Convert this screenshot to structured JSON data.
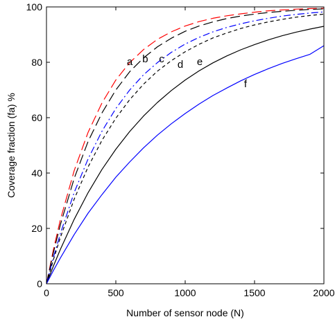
{
  "chart_data": {
    "type": "line",
    "title": "",
    "xlabel": "Number of sensor node (N)",
    "ylabel": "Coverage fraction (fa) %",
    "xlim": [
      0,
      2000
    ],
    "ylim": [
      0,
      100
    ],
    "xticks": [
      0,
      500,
      1000,
      1500,
      2000
    ],
    "yticks": [
      0,
      20,
      40,
      60,
      80,
      100
    ],
    "grid": false,
    "x": [
      0,
      50,
      100,
      200,
      300,
      400,
      500,
      600,
      700,
      800,
      900,
      1000,
      1100,
      1200,
      1300,
      1400,
      1500,
      1600,
      1700,
      1800,
      1900,
      2000
    ],
    "series": [
      {
        "name": "a",
        "color": "#ff0000",
        "dash": "long",
        "label_at": [
          600,
          79
        ],
        "values": [
          0,
          12.3,
          23.1,
          40.9,
          54.7,
          65.3,
          73.6,
          79.9,
          84.6,
          88.3,
          91.0,
          93.1,
          94.7,
          95.9,
          96.8,
          97.5,
          98.1,
          98.6,
          98.9,
          99.2,
          99.4,
          99.5
        ]
      },
      {
        "name": "b",
        "color": "#000000",
        "dash": "long",
        "label_at": [
          712,
          80
        ],
        "values": [
          0,
          11.3,
          21.3,
          38.1,
          51.4,
          61.7,
          70.0,
          76.6,
          81.6,
          85.6,
          88.7,
          91.2,
          93.1,
          94.6,
          95.8,
          96.7,
          97.4,
          98.0,
          98.4,
          98.8,
          99.1,
          99.3
        ]
      },
      {
        "name": "c",
        "color": "#0000ff",
        "dash": "dashdot",
        "label_at": [
          830,
          80
        ],
        "values": [
          0,
          9.5,
          18.1,
          33.0,
          45.1,
          55.1,
          63.3,
          70.0,
          75.5,
          79.9,
          83.6,
          86.6,
          89.0,
          91.0,
          92.6,
          93.9,
          95.0,
          95.9,
          96.7,
          97.3,
          97.8,
          98.2
        ]
      },
      {
        "name": "d",
        "color": "#000000",
        "dash": "short",
        "label_at": [
          965,
          78
        ],
        "values": [
          0,
          8.7,
          16.7,
          30.6,
          42.2,
          51.8,
          59.8,
          66.5,
          72.1,
          76.8,
          80.6,
          83.8,
          86.5,
          88.8,
          90.6,
          92.2,
          93.5,
          94.6,
          95.5,
          96.3,
          96.9,
          97.4
        ]
      },
      {
        "name": "e",
        "color": "#000000",
        "dash": "solid",
        "label_at": [
          1105,
          79
        ],
        "values": [
          0,
          6.4,
          12.4,
          23.3,
          32.9,
          41.3,
          48.6,
          55.0,
          60.6,
          65.5,
          69.8,
          73.6,
          76.9,
          79.8,
          82.3,
          84.5,
          86.4,
          88.1,
          89.6,
          90.9,
          92.0,
          93.0
        ]
      },
      {
        "name": "f",
        "color": "#0000ff",
        "dash": "solid",
        "label_at": [
          1435,
          71
        ],
        "values": [
          0,
          4.8,
          9.3,
          17.8,
          25.5,
          32.2,
          38.5,
          44.0,
          49.1,
          53.7,
          57.8,
          61.5,
          64.9,
          68.0,
          70.7,
          73.3,
          75.6,
          77.7,
          79.6,
          81.3,
          82.9,
          86.0
        ]
      }
    ]
  }
}
